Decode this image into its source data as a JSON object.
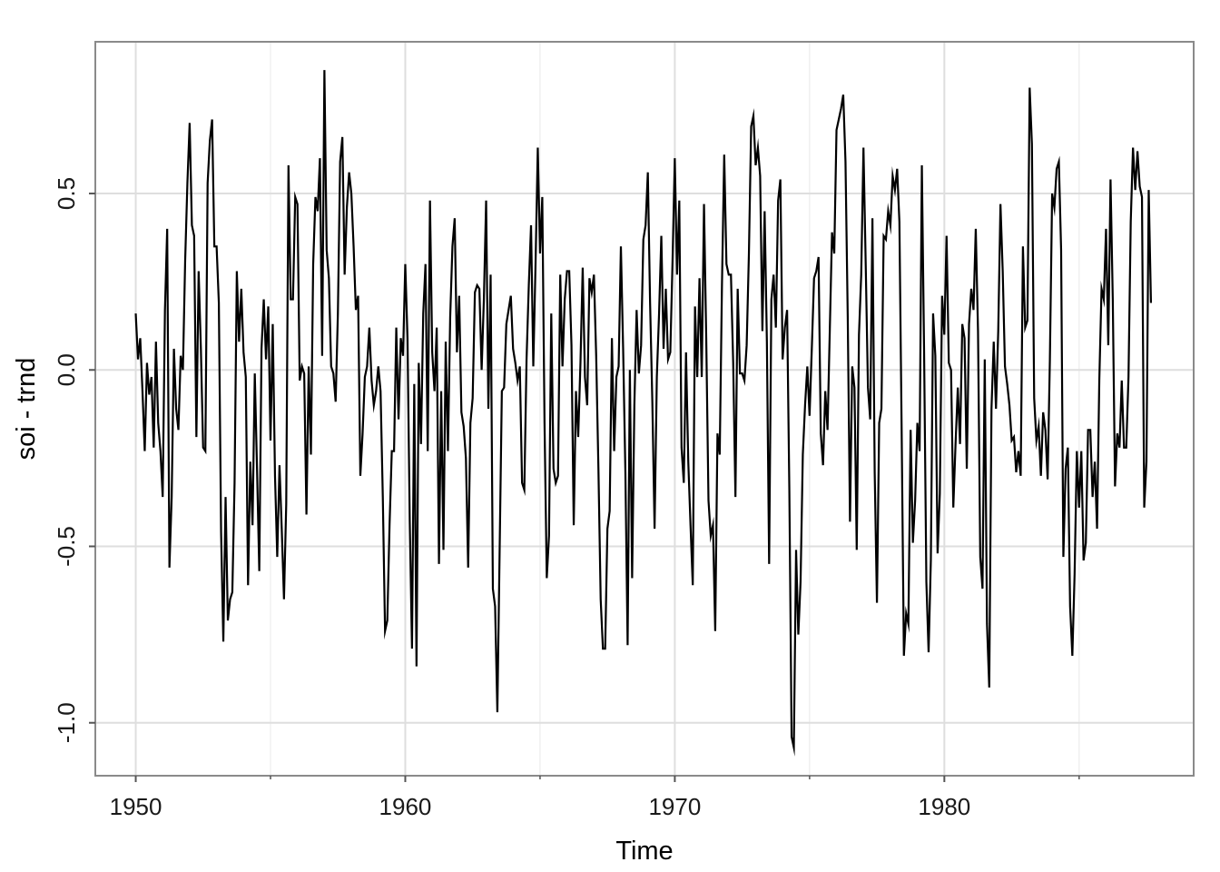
{
  "chart_data": {
    "type": "line",
    "title": "",
    "xlabel": "Time",
    "ylabel": "soi - trnd",
    "xlim": [
      1948.5,
      1989.25
    ],
    "ylim": [
      -1.15,
      0.93
    ],
    "x_ticks": [
      1950,
      1960,
      1970,
      1980
    ],
    "x_tick_labels": [
      "1950",
      "1960",
      "1970",
      "1980"
    ],
    "y_ticks": [
      -1.0,
      -0.5,
      0.0,
      0.5
    ],
    "y_tick_labels": [
      "-1.0",
      "-0.5",
      "0.0",
      "0.5"
    ],
    "grid": true,
    "legend": "none",
    "line_color": "#000000",
    "series": [
      {
        "x_start": 1950.0,
        "x_step": 0.08333,
        "values": [
          0.16,
          0.03,
          0.09,
          -0.06,
          -0.23,
          0.02,
          -0.07,
          -0.02,
          -0.22,
          0.08,
          -0.15,
          -0.23,
          -0.36,
          0.17,
          0.4,
          -0.56,
          -0.36,
          0.06,
          -0.11,
          -0.17,
          0.04,
          0.0,
          0.31,
          0.53,
          0.7,
          0.41,
          0.38,
          -0.19,
          0.28,
          0.06,
          -0.22,
          -0.23,
          0.53,
          0.65,
          0.71,
          0.35,
          0.35,
          0.19,
          -0.46,
          -0.77,
          -0.36,
          -0.71,
          -0.65,
          -0.63,
          -0.32,
          0.28,
          0.08,
          0.23,
          0.05,
          -0.02,
          -0.61,
          -0.26,
          -0.44,
          -0.01,
          -0.28,
          -0.57,
          0.06,
          0.2,
          0.03,
          0.18,
          -0.2,
          0.13,
          -0.3,
          -0.53,
          -0.27,
          -0.45,
          -0.65,
          -0.38,
          0.58,
          0.2,
          0.2,
          0.49,
          0.47,
          -0.03,
          0.01,
          -0.01,
          -0.41,
          0.01,
          -0.24,
          0.3,
          0.49,
          0.45,
          0.6,
          0.04,
          0.85,
          0.34,
          0.26,
          0.01,
          -0.01,
          -0.09,
          0.16,
          0.59,
          0.66,
          0.27,
          0.46,
          0.56,
          0.5,
          0.35,
          0.17,
          0.21,
          -0.3,
          -0.18,
          -0.02,
          0.01,
          0.12,
          -0.03,
          -0.1,
          -0.06,
          0.01,
          -0.06,
          -0.36,
          -0.74,
          -0.71,
          -0.44,
          -0.23,
          -0.23,
          0.12,
          -0.14,
          0.09,
          0.04,
          0.3,
          0.09,
          -0.43,
          -0.79,
          -0.04,
          -0.84,
          0.02,
          -0.21,
          0.16,
          0.3,
          -0.23,
          0.48,
          0.05,
          -0.06,
          0.12,
          -0.55,
          -0.06,
          -0.51,
          0.08,
          -0.23,
          0.15,
          0.35,
          0.43,
          0.05,
          0.21,
          -0.12,
          -0.16,
          -0.25,
          -0.56,
          -0.15,
          -0.08,
          0.22,
          0.24,
          0.23,
          0.0,
          0.2,
          0.48,
          -0.11,
          0.27,
          -0.62,
          -0.67,
          -0.97,
          -0.52,
          -0.06,
          -0.05,
          0.13,
          0.17,
          0.21,
          0.06,
          0.02,
          -0.03,
          0.01,
          -0.32,
          -0.34,
          0.03,
          0.24,
          0.41,
          0.01,
          0.3,
          0.63,
          0.33,
          0.49,
          -0.15,
          -0.59,
          -0.47,
          0.16,
          -0.28,
          -0.32,
          -0.3,
          0.27,
          0.01,
          0.2,
          0.28,
          0.28,
          0.07,
          -0.44,
          -0.06,
          -0.19,
          0.02,
          0.29,
          -0.02,
          -0.1,
          0.26,
          0.22,
          0.27,
          0.04,
          -0.28,
          -0.65,
          -0.79,
          -0.79,
          -0.45,
          -0.4,
          0.09,
          -0.23,
          -0.02,
          0.01,
          0.35,
          0.06,
          -0.29,
          -0.78,
          0.0,
          -0.59,
          -0.1,
          0.17,
          -0.01,
          0.07,
          0.37,
          0.41,
          0.56,
          0.19,
          -0.09,
          -0.45,
          -0.02,
          0.16,
          0.38,
          0.06,
          0.23,
          0.03,
          0.05,
          0.31,
          0.6,
          0.27,
          0.48,
          -0.22,
          -0.32,
          0.05,
          -0.26,
          -0.44,
          -0.61,
          0.18,
          -0.02,
          0.26,
          -0.02,
          0.47,
          0.09,
          -0.37,
          -0.47,
          -0.44,
          -0.74,
          -0.18,
          -0.24,
          0.24,
          0.61,
          0.3,
          0.27,
          0.27,
          0.02,
          -0.36,
          0.23,
          -0.01,
          -0.01,
          -0.03,
          0.07,
          0.33,
          0.69,
          0.72,
          0.58,
          0.63,
          0.55,
          0.11,
          0.45,
          0.08,
          -0.55,
          0.2,
          0.27,
          0.12,
          0.48,
          0.54,
          0.03,
          0.12,
          0.17,
          -0.34,
          -1.04,
          -1.07,
          -0.51,
          -0.75,
          -0.6,
          -0.24,
          -0.1,
          0.01,
          -0.13,
          0.06,
          0.26,
          0.28,
          0.32,
          -0.18,
          -0.27,
          -0.06,
          -0.17,
          0.11,
          0.39,
          0.33,
          0.68,
          0.71,
          0.74,
          0.78,
          0.59,
          0.15,
          -0.43,
          0.01,
          -0.05,
          -0.51,
          0.1,
          0.27,
          0.63,
          0.3,
          -0.05,
          -0.14,
          0.43,
          -0.29,
          -0.66,
          -0.15,
          -0.11,
          0.38,
          0.37,
          0.45,
          0.41,
          0.55,
          0.51,
          0.57,
          0.42,
          -0.17,
          -0.81,
          -0.69,
          -0.72,
          -0.17,
          -0.49,
          -0.37,
          -0.15,
          -0.23,
          0.58,
          0.05,
          -0.6,
          -0.8,
          -0.54,
          0.16,
          0.04,
          -0.52,
          -0.35,
          0.21,
          0.1,
          0.38,
          0.02,
          0.0,
          -0.39,
          -0.21,
          -0.05,
          -0.21,
          0.13,
          0.09,
          -0.28,
          0.13,
          0.23,
          0.17,
          0.4,
          0.11,
          -0.53,
          -0.62,
          0.03,
          -0.72,
          -0.9,
          -0.11,
          0.08,
          -0.11,
          0.11,
          0.47,
          0.28,
          0.01,
          -0.04,
          -0.1,
          -0.2,
          -0.19,
          -0.29,
          -0.23,
          -0.3,
          0.35,
          0.12,
          0.14,
          0.8,
          0.64,
          -0.08,
          -0.2,
          -0.16,
          -0.3,
          -0.12,
          -0.17,
          -0.31,
          0.03,
          0.5,
          0.46,
          0.57,
          0.59,
          0.34,
          -0.53,
          -0.28,
          -0.22,
          -0.67,
          -0.81,
          -0.58,
          -0.23,
          -0.39,
          -0.23,
          -0.54,
          -0.49,
          -0.17,
          -0.17,
          -0.36,
          -0.26,
          -0.45,
          -0.03,
          0.23,
          0.2,
          0.4,
          0.07,
          0.54,
          0.2,
          -0.33,
          -0.18,
          -0.22,
          -0.03,
          -0.22,
          -0.22,
          -0.02,
          0.42,
          0.63,
          0.51,
          0.62,
          0.52,
          0.49,
          -0.39,
          -0.26,
          0.51,
          0.19
        ]
      }
    ]
  }
}
